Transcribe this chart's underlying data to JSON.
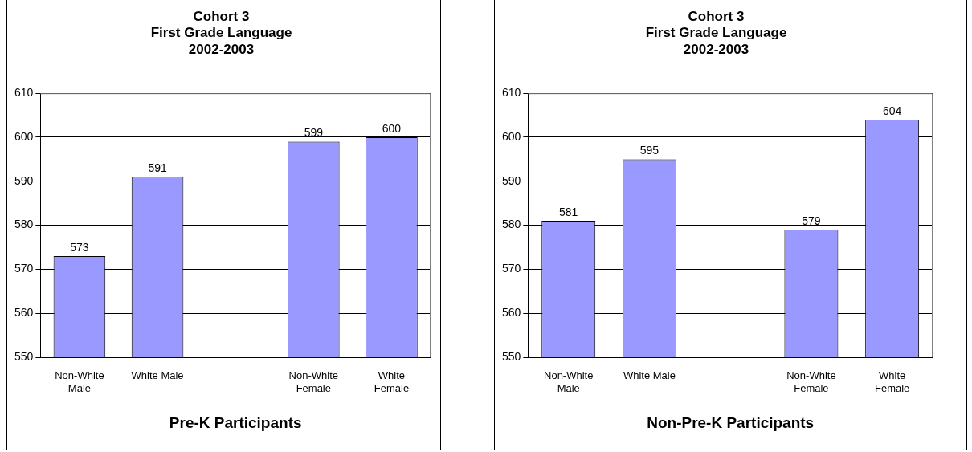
{
  "chart_data": [
    {
      "type": "bar",
      "title": "Cohort 3\nFirst Grade Language\n2002-2003",
      "xlabel": "Pre-K Participants",
      "categories": [
        "Non-White Male",
        "White Male",
        null,
        "Non-White Female",
        "White Female"
      ],
      "values": [
        573,
        591,
        null,
        599,
        600
      ],
      "color": "#9999ff",
      "ylim": [
        550,
        610
      ],
      "yticks": [
        550,
        560,
        570,
        580,
        590,
        600,
        610
      ],
      "grid": "y",
      "legend": false,
      "data_labels": true
    },
    {
      "type": "bar",
      "title": "Cohort 3\nFirst Grade Language\n2002-2003",
      "xlabel": "Non-Pre-K Participants",
      "categories": [
        "Non-White Male",
        "White Male",
        null,
        "Non-White Female",
        "White Female"
      ],
      "values": [
        581,
        595,
        null,
        579,
        604
      ],
      "color": "#9999ff",
      "ylim": [
        550,
        610
      ],
      "yticks": [
        550,
        560,
        570,
        580,
        590,
        600,
        610
      ],
      "grid": "y",
      "legend": false,
      "data_labels": true
    }
  ]
}
